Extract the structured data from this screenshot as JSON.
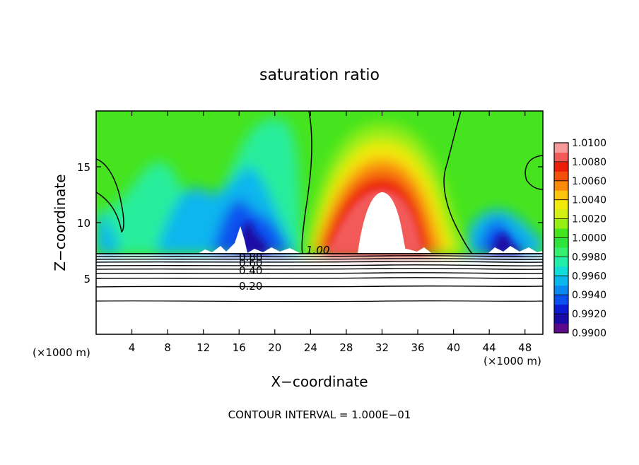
{
  "chart_data": {
    "type": "heatmap",
    "title": "saturation ratio",
    "xlabel": "X−coordinate",
    "ylabel": "Z−coordinate",
    "x_unit_left": "(×1000 m)",
    "x_unit_right": "(×1000 m)",
    "xlim": [
      0,
      50
    ],
    "ylim": [
      0,
      20
    ],
    "x_ticks": [
      4,
      8,
      12,
      16,
      20,
      24,
      28,
      32,
      36,
      40,
      44,
      48
    ],
    "y_ticks": [
      5,
      10,
      15
    ],
    "colorbar": {
      "levels": [
        0.99,
        0.991,
        0.992,
        0.993,
        0.994,
        0.995,
        0.996,
        0.997,
        0.998,
        0.999,
        1.0,
        1.001,
        1.002,
        1.003,
        1.004,
        1.005,
        1.006,
        1.007,
        1.008,
        1.009,
        1.01
      ],
      "labels": [
        "0.9900",
        "0.9920",
        "0.9940",
        "0.9960",
        "0.9980",
        "1.0000",
        "1.0020",
        "1.0040",
        "1.0060",
        "1.0080",
        "1.0100"
      ],
      "colors": [
        "#5b0a8c",
        "#1a0aa6",
        "#0a1ad2",
        "#0a50ee",
        "#0a88f2",
        "#0ab6ee",
        "#10dcd8",
        "#22eeaa",
        "#38f070",
        "#30e43c",
        "#46e41e",
        "#96ee14",
        "#d2f014",
        "#f2ea0a",
        "#fcc40a",
        "#fa8a0a",
        "#f4500a",
        "#ec1e0a",
        "#f25a5a",
        "#f79a9a"
      ]
    },
    "contour_labels": [
      "1.00",
      "0.80",
      "0.60",
      "0.40",
      "0.20"
    ],
    "footer": "CONTOUR INTERVAL = 1.000E−01"
  }
}
